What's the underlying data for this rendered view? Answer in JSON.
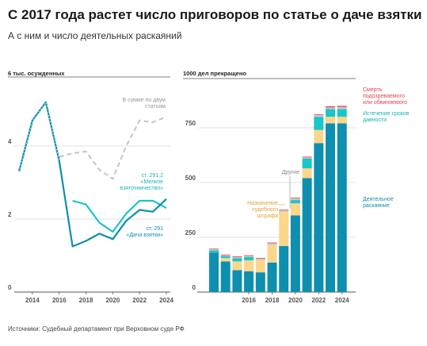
{
  "title": "С 2017 года растет число приговоров по статье о даче взятки",
  "subtitle": "А с ним и число деятельных раскаяний",
  "source": "Источники: Судебный департамент при Верховном суде РФ",
  "colors": {
    "teal_dark": "#0f8fae",
    "cyan": "#19c6c9",
    "gray_dashed": "#c9c9c9",
    "yellow": "#fbd68b",
    "red": "#e8414d",
    "grid": "#d9d9d9"
  },
  "chart_data": [
    {
      "type": "line",
      "ylabel": "6 тыс. осужденных",
      "ylim": [
        0,
        6
      ],
      "yticks": [
        0,
        2,
        4
      ],
      "xlim": [
        2013,
        2024
      ],
      "xticks": [
        2014,
        2016,
        2018,
        2020,
        2022,
        2024
      ],
      "series": [
        {
          "name": "В сумме по двум статьям",
          "style": "dashed",
          "color": "#c9c9c9",
          "x": [
            2016,
            2017,
            2018,
            2019,
            2020,
            2021,
            2022,
            2023,
            2024
          ],
          "y": [
            3.7,
            3.8,
            3.85,
            3.35,
            3.1,
            4.0,
            4.7,
            4.65,
            4.8
          ]
        },
        {
          "name": "ст. 291.2 «Мелкое взяточничество»",
          "style": "solid",
          "color": "#19c6c9",
          "x": [
            2017,
            2018,
            2019,
            2020,
            2021,
            2022,
            2023,
            2024
          ],
          "y": [
            2.5,
            2.4,
            1.9,
            1.65,
            2.15,
            2.5,
            2.5,
            2.3
          ]
        },
        {
          "name": "ст. 291 «Дача взятки»",
          "style": "solid",
          "color": "#0f8fae",
          "x": [
            2013,
            2014,
            2015,
            2016,
            2017,
            2018,
            2019,
            2020,
            2021,
            2022,
            2023,
            2024
          ],
          "y": [
            3.3,
            4.7,
            5.2,
            3.6,
            1.25,
            1.4,
            1.6,
            1.45,
            1.95,
            2.25,
            2.2,
            2.55
          ]
        }
      ],
      "annotations": {
        "sum": [
          "В сумме по двум",
          "статьям"
        ],
        "small": [
          "ст. 291.2",
          "«Мелкое",
          "взяточничество»"
        ],
        "give": [
          "ст. 291",
          "«Дача взятки»"
        ]
      }
    },
    {
      "type": "bar",
      "stacked": true,
      "ylabel": "1000 дел прекращено",
      "ylim": [
        0,
        1000
      ],
      "yticks": [
        0,
        250,
        500,
        750
      ],
      "categories": [
        2013,
        2014,
        2015,
        2016,
        2017,
        2018,
        2019,
        2020,
        2021,
        2022,
        2023,
        2024
      ],
      "xticks": [
        2016,
        2018,
        2020,
        2022,
        2024
      ],
      "series": [
        {
          "name": "Деятельное раскаяние",
          "color": "#0f8fae",
          "values": [
            180,
            140,
            100,
            95,
            90,
            135,
            210,
            350,
            520,
            680,
            770,
            770
          ]
        },
        {
          "name": "Назначение судебного штрафа",
          "color": "#fbd68b",
          "values": [
            0,
            15,
            40,
            50,
            55,
            80,
            155,
            55,
            45,
            60,
            30,
            30
          ]
        },
        {
          "name": "Истечение сроков давности",
          "color": "#19c6c9",
          "values": [
            10,
            8,
            15,
            15,
            0,
            0,
            0,
            15,
            45,
            60,
            35,
            35
          ]
        },
        {
          "name": "Другие",
          "color": "#c9c9c9",
          "values": [
            5,
            5,
            5,
            5,
            8,
            8,
            8,
            8,
            5,
            8,
            8,
            10
          ]
        },
        {
          "name": "Смерть подозреваемого или обвиняемого",
          "color": "#e8414d",
          "values": [
            3,
            3,
            3,
            3,
            3,
            3,
            3,
            3,
            3,
            3,
            5,
            5
          ]
        }
      ],
      "annotations": {
        "death": [
          "Смерть",
          "подозреваемого",
          "или обвиняемого"
        ],
        "expiry": [
          "Истечение сроков",
          "давности"
        ],
        "other": [
          "Другие"
        ],
        "fine": [
          "Назначение",
          "судебного",
          "штрафа"
        ],
        "repent": [
          "Деятельное",
          "раскаяние"
        ]
      }
    }
  ]
}
